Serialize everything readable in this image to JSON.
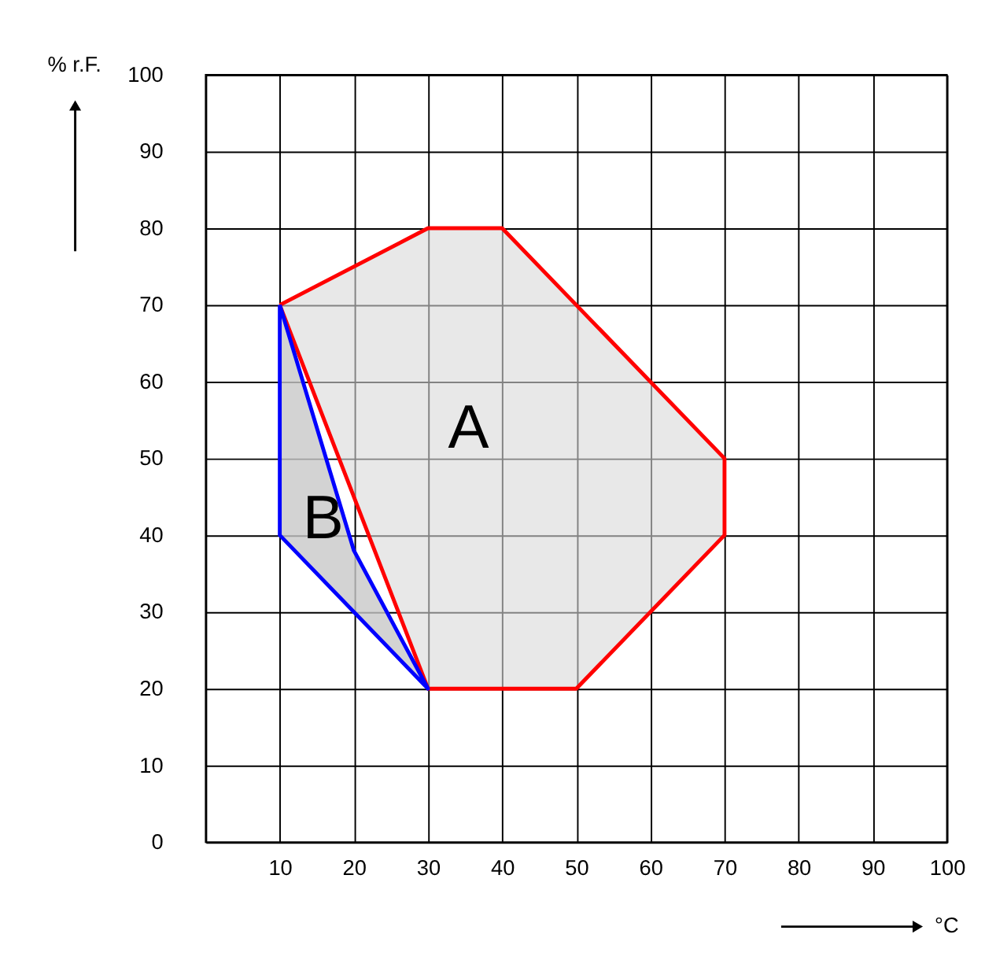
{
  "chart_data": {
    "type": "area",
    "xlabel": "°C",
    "ylabel": "% r.F.",
    "series": [
      {
        "name": "A",
        "color": "#ff0000",
        "x": [
          10,
          30,
          40,
          50,
          70,
          70,
          50,
          30,
          10
        ],
        "values": [
          70,
          80,
          80,
          70,
          50,
          40,
          20,
          20,
          70
        ]
      },
      {
        "name": "B",
        "color": "#0000ff",
        "x": [
          10,
          10,
          30,
          20,
          10
        ],
        "values": [
          70,
          40,
          20,
          38,
          70
        ]
      }
    ],
    "xlim": [
      0,
      100
    ],
    "ylim": [
      0,
      100
    ],
    "xticks": [
      {
        "value": 0,
        "label": null
      },
      10,
      20,
      30,
      40,
      50,
      60,
      70,
      80,
      90,
      100
    ],
    "yticks": [
      0,
      10,
      20,
      30,
      40,
      50,
      60,
      70,
      80,
      90,
      100
    ],
    "grid": true,
    "marker": "none",
    "line_style": "solid"
  }
}
